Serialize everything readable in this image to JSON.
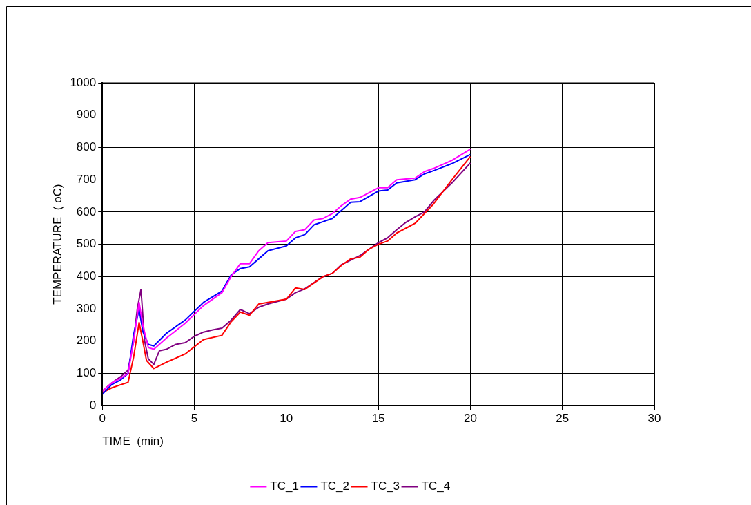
{
  "chart_data": {
    "type": "line",
    "xlabel": "TIME  (min)",
    "ylabel": "TEMPERATURE  ( oC)",
    "xlim": [
      0,
      30
    ],
    "xticks": [
      0,
      5,
      10,
      15,
      20,
      25,
      30
    ],
    "ylim": [
      0,
      1000
    ],
    "yticks": [
      0,
      100,
      200,
      300,
      400,
      500,
      600,
      700,
      800,
      900,
      1000
    ],
    "grid": true,
    "legend": "bottom",
    "marker": "none",
    "line_style": "solid",
    "series": [
      {
        "name": "TC_1",
        "color": "#ff00ff",
        "x": [
          0,
          0.5,
          1,
          1.4,
          1.7,
          2,
          2.2,
          2.5,
          2.8,
          3.5,
          4.5,
          5.5,
          6.5,
          7,
          7.5,
          8,
          8.5,
          9,
          10,
          10.5,
          11,
          11.5,
          12,
          12.5,
          13,
          13.5,
          14,
          15,
          15.5,
          16,
          17,
          17.5,
          18,
          19,
          20
        ],
        "values": [
          45,
          70,
          85,
          100,
          200,
          320,
          250,
          180,
          175,
          210,
          255,
          310,
          350,
          400,
          440,
          440,
          480,
          505,
          510,
          540,
          545,
          575,
          580,
          595,
          620,
          640,
          645,
          675,
          675,
          700,
          705,
          725,
          735,
          760,
          795
        ]
      },
      {
        "name": "TC_2",
        "color": "#0000ff",
        "x": [
          0,
          0.5,
          1,
          1.4,
          1.7,
          2,
          2.2,
          2.5,
          2.8,
          3.5,
          4.5,
          5.5,
          6.5,
          7,
          7.5,
          8,
          8.5,
          9,
          10,
          10.5,
          11,
          11.5,
          12,
          12.5,
          13,
          13.5,
          14,
          15,
          15.5,
          16,
          17,
          17.5,
          18,
          19,
          20
        ],
        "values": [
          35,
          65,
          80,
          100,
          220,
          300,
          230,
          190,
          185,
          225,
          265,
          320,
          355,
          405,
          425,
          430,
          455,
          480,
          495,
          520,
          530,
          560,
          570,
          580,
          605,
          630,
          632,
          665,
          668,
          690,
          700,
          718,
          728,
          750,
          778
        ]
      },
      {
        "name": "TC_3",
        "color": "#ff0000",
        "x": [
          0,
          0.5,
          1,
          1.4,
          1.7,
          2,
          2.2,
          2.4,
          2.8,
          3.5,
          4.5,
          5.5,
          6.5,
          7,
          7.5,
          8,
          8.5,
          9,
          10,
          10.5,
          11,
          11.5,
          12,
          12.5,
          13,
          13.5,
          14,
          14.5,
          15,
          15.5,
          16,
          16.5,
          17,
          17.5,
          18,
          19,
          20
        ],
        "values": [
          40,
          55,
          65,
          72,
          150,
          258,
          200,
          140,
          115,
          135,
          160,
          205,
          218,
          260,
          290,
          280,
          315,
          320,
          330,
          365,
          360,
          380,
          400,
          410,
          435,
          455,
          460,
          485,
          500,
          510,
          535,
          550,
          565,
          595,
          625,
          700,
          772
        ]
      },
      {
        "name": "TC_4",
        "color": "#800080",
        "x": [
          0,
          0.5,
          1,
          1.4,
          1.7,
          1.9,
          2.1,
          2.3,
          2.5,
          2.8,
          3.1,
          3.5,
          4,
          4.5,
          5,
          5.5,
          6,
          6.5,
          7,
          7.5,
          8,
          8.5,
          9,
          10,
          10.5,
          11,
          12,
          12.5,
          13,
          14,
          15,
          15.5,
          16,
          16.5,
          17,
          17.5,
          18,
          19,
          20
        ],
        "values": [
          45,
          70,
          90,
          110,
          200,
          300,
          360,
          200,
          145,
          128,
          170,
          175,
          190,
          195,
          215,
          228,
          235,
          240,
          265,
          298,
          285,
          305,
          315,
          330,
          350,
          362,
          400,
          410,
          437,
          465,
          505,
          520,
          545,
          568,
          585,
          600,
          635,
          690,
          752
        ]
      }
    ]
  }
}
